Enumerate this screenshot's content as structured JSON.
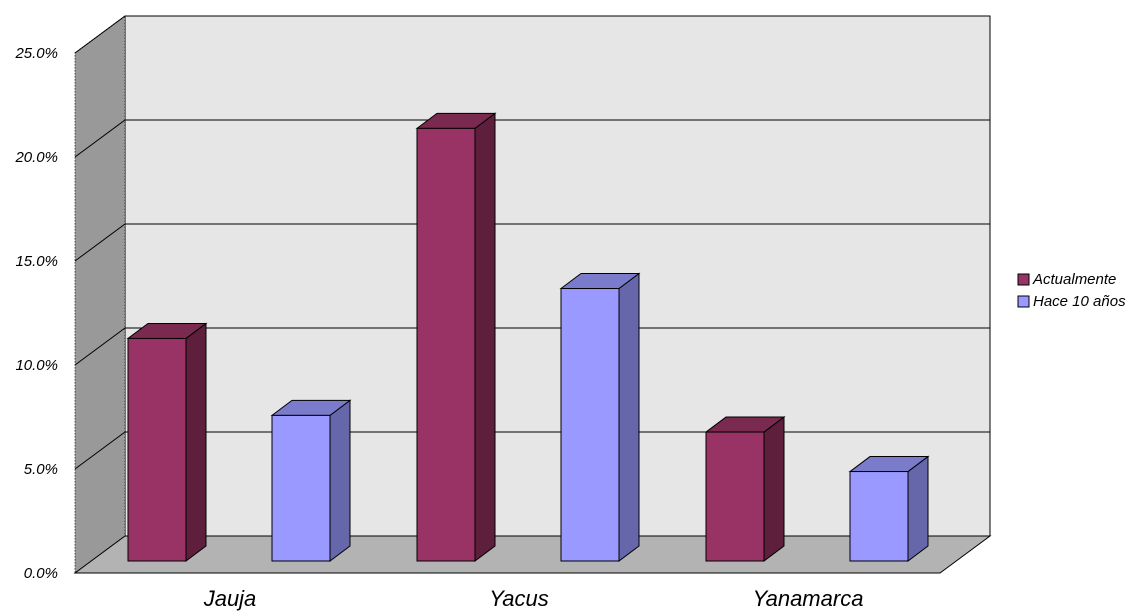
{
  "chart_data": {
    "type": "bar",
    "categories": [
      "Jauja",
      "Yacus",
      "Yanamarca"
    ],
    "series": [
      {
        "name": "Actualmente",
        "values": [
          10.7,
          20.8,
          6.2
        ],
        "color": "#993366",
        "side_color": "#5e1f3d",
        "top_color": "#7a2a4f"
      },
      {
        "name": "Hace 10 años",
        "values": [
          7.0,
          13.1,
          4.3
        ],
        "color": "#9999ff",
        "side_color": "#6666aa",
        "top_color": "#7b7bcc"
      }
    ],
    "ylim": [
      0,
      25
    ],
    "y_ticks": [
      "0.0%",
      "5.0%",
      "10.0%",
      "15.0%",
      "20.0%",
      "25.0%"
    ],
    "grid": true,
    "legend_position": "right",
    "chart_style": "3d-column",
    "wall_color": "#e6e6e6",
    "floor_color": "#b3b3b3",
    "side_wall_color": "#999999"
  }
}
